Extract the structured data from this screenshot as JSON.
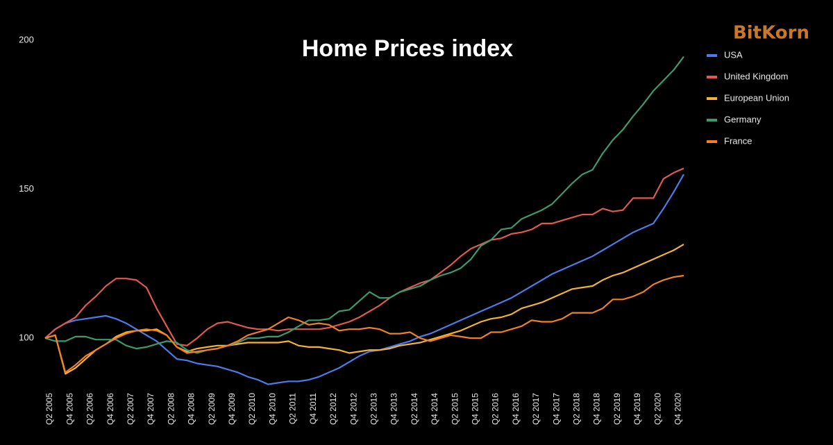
{
  "chart_data": {
    "type": "line",
    "title": "Home Prices index",
    "brand": "BitKorn",
    "legend": "upper right",
    "grid": false,
    "ylim": [
      83,
      200
    ],
    "yticks": [
      100,
      150,
      200
    ],
    "categories": [
      "Q2 2005",
      null,
      "Q4 2005",
      null,
      "Q2 2006",
      null,
      "Q4 2006",
      null,
      "Q2 2007",
      null,
      "Q4 2007",
      null,
      "Q2 2008",
      null,
      "Q4 2008",
      null,
      "Q2 2009",
      null,
      "Q4 2009",
      null,
      "Q2 2010",
      null,
      "Q4 2010",
      null,
      "Q2 2011",
      null,
      "Q4 2011",
      null,
      "Q2 2012",
      null,
      "Q4 2012",
      null,
      "Q2 2013",
      null,
      "Q4 2013",
      null,
      "Q2 2014",
      null,
      "Q4 2014",
      null,
      "Q2 2015",
      null,
      "Q4 2015",
      null,
      "Q2 2016",
      null,
      "Q4 2016",
      null,
      "Q2 2017",
      null,
      "Q4 2017",
      null,
      "Q2 2018",
      null,
      "Q4 2018",
      null,
      "Q2 2019",
      null,
      "Q4 2019",
      null,
      "Q2 2020",
      null,
      "Q4 2020",
      null
    ],
    "series": [
      {
        "name": "USA",
        "color": "#4a7de8",
        "values": [
          100,
          103,
          105,
          106,
          106.5,
          107,
          107.5,
          106.5,
          105,
          103,
          101,
          99,
          96,
          93,
          92.5,
          91.5,
          91,
          90.5,
          89.5,
          88.5,
          87,
          86,
          84.5,
          85,
          85.5,
          85.5,
          86,
          87,
          88.5,
          90,
          92,
          94,
          95.5,
          96,
          97,
          98,
          99,
          100.5,
          101.5,
          103,
          104.5,
          106,
          107.5,
          109,
          110.5,
          112,
          113.5,
          115.5,
          117.5,
          119.5,
          121.5,
          123,
          124.5,
          126,
          127.5,
          129.5,
          131.5,
          133.5,
          135.5,
          137,
          138.5,
          143.5,
          149,
          155
        ]
      },
      {
        "name": "United Kingdom",
        "color": "#e05a4f",
        "values": [
          100,
          103,
          105,
          107,
          111,
          114,
          117.5,
          120,
          120,
          119.5,
          117,
          110,
          104,
          98,
          97.5,
          100,
          103,
          105,
          105.5,
          104.5,
          103.5,
          103,
          103,
          102.5,
          103,
          103,
          103,
          103,
          103.5,
          104.5,
          105.5,
          107,
          109,
          111,
          113.5,
          115.5,
          117,
          118.5,
          119.5,
          122,
          124.5,
          127.5,
          130,
          131.5,
          133,
          133.5,
          135,
          135.5,
          136.5,
          138.5,
          138.5,
          139.5,
          140.5,
          141.5,
          141.5,
          143.5,
          142.5,
          143,
          147,
          147,
          147,
          153.5,
          155.5,
          157
        ]
      },
      {
        "name": "European Union",
        "color": "#f2b233",
        "values": [
          100,
          101,
          88,
          90,
          93,
          96,
          98,
          100.5,
          102,
          102.5,
          102.5,
          103,
          101,
          97,
          95.5,
          96.5,
          97,
          97.5,
          97.5,
          98,
          98.5,
          98.5,
          98.5,
          98.5,
          99,
          97.5,
          97,
          97,
          96.5,
          96,
          95,
          95.5,
          96,
          96,
          96.5,
          97.5,
          98,
          98.5,
          99.5,
          100.5,
          101.5,
          102.5,
          104,
          105.5,
          106.5,
          107,
          108,
          110,
          111,
          112,
          113.5,
          115,
          116.5,
          117,
          117.5,
          119.5,
          121,
          122,
          123.5,
          125,
          126.5,
          128,
          129.5,
          131.5
        ]
      },
      {
        "name": "Germany",
        "color": "#3d9a6e",
        "values": [
          100,
          99,
          99,
          100.5,
          100.5,
          99.5,
          99.5,
          99.5,
          97.5,
          96.5,
          97,
          98,
          99,
          98.5,
          96,
          95,
          96,
          96.5,
          97.5,
          98.5,
          100,
          100,
          100.5,
          100.5,
          102,
          104,
          106,
          106,
          106.5,
          109,
          109.5,
          112.5,
          115.5,
          113.5,
          113.5,
          115.5,
          116.5,
          117.5,
          119.5,
          121,
          122,
          123.5,
          126.5,
          131,
          133,
          136.5,
          137,
          140,
          141.5,
          143,
          145,
          148.5,
          152,
          155,
          156.5,
          162,
          166.5,
          170,
          174.5,
          178.5,
          183,
          186.5,
          190,
          194.5
        ]
      },
      {
        "name": "France",
        "color": "#f0802a",
        "values": [
          100,
          101,
          88.5,
          91,
          94,
          96,
          98,
          100,
          101.5,
          102.5,
          103,
          102.5,
          101,
          97,
          95,
          95.5,
          96,
          96.5,
          97.5,
          99,
          101,
          102,
          103,
          105,
          107,
          106,
          104.5,
          105,
          104.5,
          102.5,
          103,
          103,
          103.5,
          103,
          101.5,
          101.5,
          102,
          100,
          99,
          100,
          101,
          100.5,
          100,
          100,
          102,
          102,
          103,
          104,
          106,
          105.5,
          105.5,
          106.5,
          108.5,
          108.5,
          108.5,
          110,
          113,
          113,
          114,
          115.5,
          118,
          119.5,
          120.5,
          121
        ]
      }
    ]
  }
}
